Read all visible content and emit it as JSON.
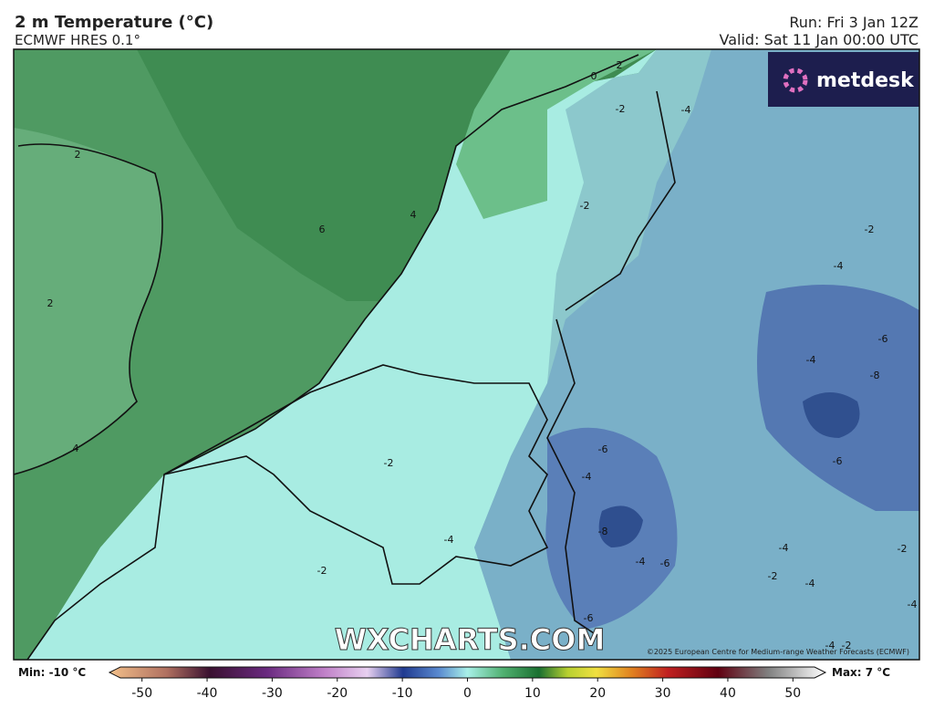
{
  "header": {
    "title": "2 m Temperature (°C)",
    "model": "ECMWF HRES 0.1°",
    "run": "Run: Fri 3 Jan 12Z",
    "valid": "Valid: Sat 11 Jan 00:00 UTC"
  },
  "map": {
    "logo": "metdesk",
    "watermark": "WXCHARTS.COM",
    "copyright": "©2025 European Centre for Medium-range Weather Forecasts (ECMWF)",
    "contour_labels": [
      2,
      6,
      4,
      2,
      4,
      2,
      0,
      -2,
      -4,
      -2,
      -2,
      -4,
      -6,
      -4,
      -8,
      -2,
      -6,
      -4,
      -6,
      -8,
      -4,
      -4,
      -6,
      -4,
      -2,
      -2,
      -2,
      -4,
      -4,
      -6,
      -4,
      -2
    ]
  },
  "colorbar": {
    "min_label": "Min: -10 °C",
    "max_label": "Max: 7 °C",
    "range": [
      -55,
      55
    ],
    "ticks": [
      -50,
      -40,
      -30,
      -20,
      -10,
      0,
      10,
      20,
      30,
      40,
      50
    ]
  }
}
